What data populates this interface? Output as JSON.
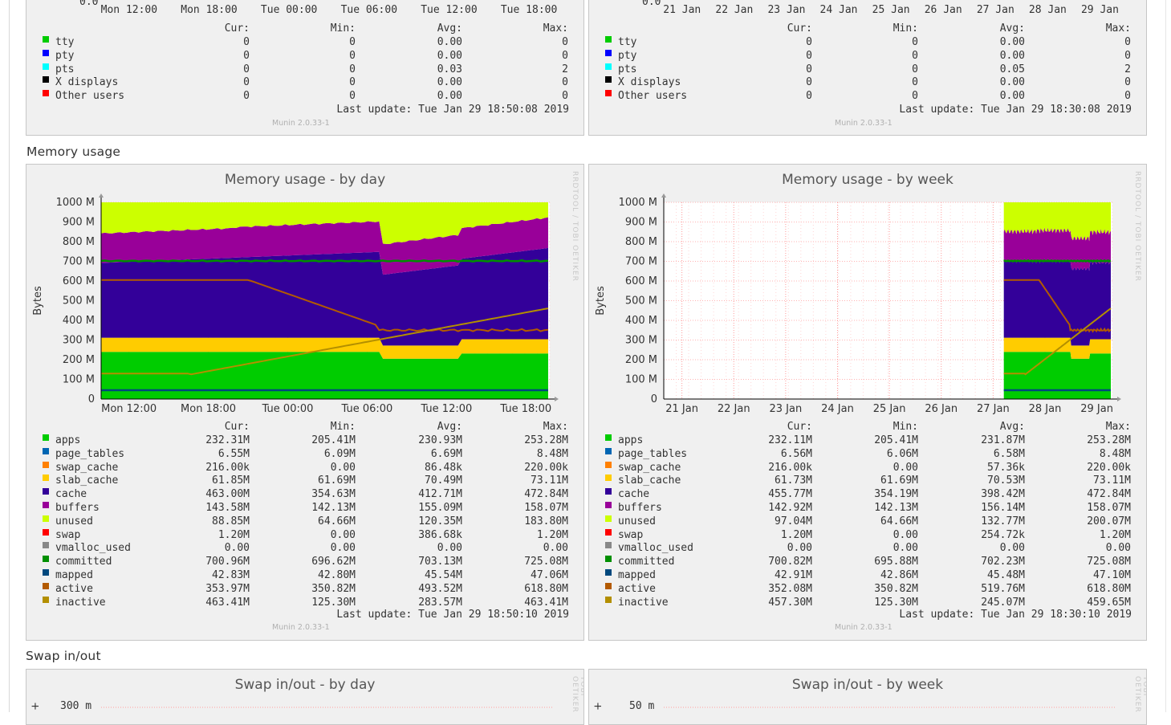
{
  "sections": {
    "memory_title": "Memory usage",
    "swap_title": "Swap in/out"
  },
  "footer": {
    "munin_version": "Munin 2.0.33-1",
    "rrd_credit": "RRDTOOL / TOBI OETIKER",
    "last_update_label": "Last update:"
  },
  "legend_headers": {
    "cur": "Cur:",
    "min": "Min:",
    "avg": "Avg:",
    "max": "Max:"
  },
  "colors": {
    "apps": "#00cc00",
    "page_tables": "#0066b3",
    "swap_cache": "#ff8000",
    "slab_cache": "#ffcc00",
    "cache": "#330099",
    "buffers": "#990099",
    "unused": "#ccff00",
    "swap": "#ff0000",
    "vmalloc_used": "#888888",
    "committed": "#008f00",
    "mapped": "#00487d",
    "active": "#b35a00",
    "inactive": "#b38f00",
    "tty": "#00cc00",
    "pty": "#0000ff",
    "pts": "#00ffff",
    "x_displays": "#000000",
    "other_users": "#ff0000"
  },
  "users_day": {
    "x_ticks": [
      "Mon 12:00",
      "Mon 18:00",
      "Tue 00:00",
      "Tue 06:00",
      "Tue 12:00",
      "Tue 18:00"
    ],
    "y_top_label": "0.0",
    "rows": [
      {
        "key": "tty",
        "name": "tty",
        "cur": "0",
        "min": "0",
        "avg": "0.00",
        "max": "0"
      },
      {
        "key": "pty",
        "name": "pty",
        "cur": "0",
        "min": "0",
        "avg": "0.00",
        "max": "0"
      },
      {
        "key": "pts",
        "name": "pts",
        "cur": "0",
        "min": "0",
        "avg": "0.03",
        "max": "2"
      },
      {
        "key": "x_displays",
        "name": "X displays",
        "cur": "0",
        "min": "0",
        "avg": "0.00",
        "max": "0"
      },
      {
        "key": "other_users",
        "name": "Other users",
        "cur": "0",
        "min": "0",
        "avg": "0.00",
        "max": "0"
      }
    ],
    "last_update": "Tue Jan 29 18:50:08 2019"
  },
  "users_week": {
    "x_ticks": [
      "21 Jan",
      "22 Jan",
      "23 Jan",
      "24 Jan",
      "25 Jan",
      "26 Jan",
      "27 Jan",
      "28 Jan",
      "29 Jan"
    ],
    "y_top_label": "0.0",
    "rows": [
      {
        "key": "tty",
        "name": "tty",
        "cur": "0",
        "min": "0",
        "avg": "0.00",
        "max": "0"
      },
      {
        "key": "pty",
        "name": "pty",
        "cur": "0",
        "min": "0",
        "avg": "0.00",
        "max": "0"
      },
      {
        "key": "pts",
        "name": "pts",
        "cur": "0",
        "min": "0",
        "avg": "0.05",
        "max": "2"
      },
      {
        "key": "x_displays",
        "name": "X displays",
        "cur": "0",
        "min": "0",
        "avg": "0.00",
        "max": "0"
      },
      {
        "key": "other_users",
        "name": "Other users",
        "cur": "0",
        "min": "0",
        "avg": "0.00",
        "max": "0"
      }
    ],
    "last_update": "Tue Jan 29 18:30:08 2019"
  },
  "memory_day": {
    "title": "Memory usage - by day",
    "ylabel": "Bytes",
    "y_ticks": [
      "1000 M",
      "900 M",
      "800 M",
      "700 M",
      "600 M",
      "500 M",
      "400 M",
      "300 M",
      "200 M",
      "100 M",
      "0"
    ],
    "x_ticks": [
      "Mon 12:00",
      "Mon 18:00",
      "Tue 00:00",
      "Tue 06:00",
      "Tue 12:00",
      "Tue 18:00"
    ],
    "rows": [
      {
        "key": "apps",
        "name": "apps",
        "cur": "232.31M",
        "min": "205.41M",
        "avg": "230.93M",
        "max": "253.28M"
      },
      {
        "key": "page_tables",
        "name": "page_tables",
        "cur": "6.55M",
        "min": "6.09M",
        "avg": "6.69M",
        "max": "8.48M"
      },
      {
        "key": "swap_cache",
        "name": "swap_cache",
        "cur": "216.00k",
        "min": "0.00",
        "avg": "86.48k",
        "max": "220.00k"
      },
      {
        "key": "slab_cache",
        "name": "slab_cache",
        "cur": "61.85M",
        "min": "61.69M",
        "avg": "70.49M",
        "max": "73.11M"
      },
      {
        "key": "cache",
        "name": "cache",
        "cur": "463.00M",
        "min": "354.63M",
        "avg": "412.71M",
        "max": "472.84M"
      },
      {
        "key": "buffers",
        "name": "buffers",
        "cur": "143.58M",
        "min": "142.13M",
        "avg": "155.09M",
        "max": "158.07M"
      },
      {
        "key": "unused",
        "name": "unused",
        "cur": "88.85M",
        "min": "64.66M",
        "avg": "120.35M",
        "max": "183.80M"
      },
      {
        "key": "swap",
        "name": "swap",
        "cur": "1.20M",
        "min": "0.00",
        "avg": "386.68k",
        "max": "1.20M"
      },
      {
        "key": "vmalloc_used",
        "name": "vmalloc_used",
        "cur": "0.00",
        "min": "0.00",
        "avg": "0.00",
        "max": "0.00"
      },
      {
        "key": "committed",
        "name": "committed",
        "cur": "700.96M",
        "min": "696.62M",
        "avg": "703.13M",
        "max": "725.08M"
      },
      {
        "key": "mapped",
        "name": "mapped",
        "cur": "42.83M",
        "min": "42.80M",
        "avg": "45.54M",
        "max": "47.06M"
      },
      {
        "key": "active",
        "name": "active",
        "cur": "353.97M",
        "min": "350.82M",
        "avg": "493.52M",
        "max": "618.80M"
      },
      {
        "key": "inactive",
        "name": "inactive",
        "cur": "463.41M",
        "min": "125.30M",
        "avg": "283.57M",
        "max": "463.41M"
      }
    ],
    "last_update": "Tue Jan 29 18:50:10 2019"
  },
  "memory_week": {
    "title": "Memory usage - by week",
    "ylabel": "Bytes",
    "y_ticks": [
      "1000 M",
      "900 M",
      "800 M",
      "700 M",
      "600 M",
      "500 M",
      "400 M",
      "300 M",
      "200 M",
      "100 M",
      "0"
    ],
    "x_ticks": [
      "21 Jan",
      "22 Jan",
      "23 Jan",
      "24 Jan",
      "25 Jan",
      "26 Jan",
      "27 Jan",
      "28 Jan",
      "29 Jan"
    ],
    "rows": [
      {
        "key": "apps",
        "name": "apps",
        "cur": "232.11M",
        "min": "205.41M",
        "avg": "231.87M",
        "max": "253.28M"
      },
      {
        "key": "page_tables",
        "name": "page_tables",
        "cur": "6.56M",
        "min": "6.06M",
        "avg": "6.58M",
        "max": "8.48M"
      },
      {
        "key": "swap_cache",
        "name": "swap_cache",
        "cur": "216.00k",
        "min": "0.00",
        "avg": "57.36k",
        "max": "220.00k"
      },
      {
        "key": "slab_cache",
        "name": "slab_cache",
        "cur": "61.73M",
        "min": "61.69M",
        "avg": "70.53M",
        "max": "73.11M"
      },
      {
        "key": "cache",
        "name": "cache",
        "cur": "455.77M",
        "min": "354.19M",
        "avg": "398.42M",
        "max": "472.84M"
      },
      {
        "key": "buffers",
        "name": "buffers",
        "cur": "142.92M",
        "min": "142.13M",
        "avg": "156.14M",
        "max": "158.07M"
      },
      {
        "key": "unused",
        "name": "unused",
        "cur": "97.04M",
        "min": "64.66M",
        "avg": "132.77M",
        "max": "200.07M"
      },
      {
        "key": "swap",
        "name": "swap",
        "cur": "1.20M",
        "min": "0.00",
        "avg": "254.72k",
        "max": "1.20M"
      },
      {
        "key": "vmalloc_used",
        "name": "vmalloc_used",
        "cur": "0.00",
        "min": "0.00",
        "avg": "0.00",
        "max": "0.00"
      },
      {
        "key": "committed",
        "name": "committed",
        "cur": "700.82M",
        "min": "695.88M",
        "avg": "702.23M",
        "max": "725.08M"
      },
      {
        "key": "mapped",
        "name": "mapped",
        "cur": "42.91M",
        "min": "42.86M",
        "avg": "45.48M",
        "max": "47.10M"
      },
      {
        "key": "active",
        "name": "active",
        "cur": "352.08M",
        "min": "350.82M",
        "avg": "519.76M",
        "max": "618.80M"
      },
      {
        "key": "inactive",
        "name": "inactive",
        "cur": "457.30M",
        "min": "125.30M",
        "avg": "245.07M",
        "max": "459.65M"
      }
    ],
    "last_update": "Tue Jan 29 18:30:10 2019"
  },
  "swap_day": {
    "title": "Swap in/out - by day",
    "y_top_label": "300 m",
    "axis_sign": "+"
  },
  "swap_week": {
    "title": "Swap in/out - by week",
    "y_top_label": "50 m",
    "axis_sign": "+"
  }
}
